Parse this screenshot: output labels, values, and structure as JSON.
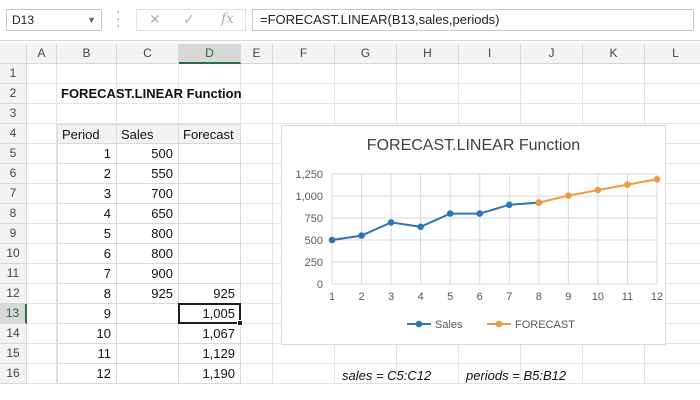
{
  "formula_bar": {
    "name_box": "D13",
    "formula": "=FORECAST.LINEAR(B13,sales,periods)",
    "cancel_icon": "x-icon",
    "enter_icon": "check-icon",
    "fx_icon": "fx-icon"
  },
  "columns": [
    "A",
    "B",
    "C",
    "D",
    "E",
    "F",
    "G",
    "H",
    "I",
    "J",
    "K",
    "L"
  ],
  "rows": [
    "1",
    "2",
    "3",
    "4",
    "5",
    "6",
    "7",
    "8",
    "9",
    "10",
    "11",
    "12",
    "13",
    "14",
    "15",
    "16"
  ],
  "sheet": {
    "title": "FORECAST.LINEAR Function",
    "table_headers": [
      "Period",
      "Sales",
      "Forecast"
    ],
    "periods": [
      "1",
      "2",
      "3",
      "4",
      "5",
      "6",
      "7",
      "8",
      "9",
      "10",
      "11",
      "12"
    ],
    "sales": [
      "500",
      "550",
      "700",
      "650",
      "800",
      "800",
      "900",
      "925",
      "",
      "",
      "",
      ""
    ],
    "forecast": [
      "",
      "",
      "",
      "",
      "",
      "",
      "",
      "925",
      "1,005",
      "1,067",
      "1,129",
      "1,190"
    ],
    "note_sales": "sales = C5:C12",
    "note_periods": "periods = B5:B12"
  },
  "active_cell": "D13",
  "chart_data": {
    "type": "line",
    "title": "FORECAST.LINEAR Function",
    "categories": [
      "1",
      "2",
      "3",
      "4",
      "5",
      "6",
      "7",
      "8",
      "9",
      "10",
      "11",
      "12"
    ],
    "y_ticks": [
      "0",
      "250",
      "500",
      "750",
      "1,000",
      "1,250"
    ],
    "ylim": [
      0,
      1250
    ],
    "grid": true,
    "legend": "bottom",
    "series": [
      {
        "name": "Sales",
        "color": "#2e75b6",
        "values": [
          500,
          550,
          700,
          650,
          800,
          800,
          900,
          925,
          null,
          null,
          null,
          null
        ]
      },
      {
        "name": "FORECAST",
        "color": "#ed9b40",
        "values": [
          null,
          null,
          null,
          null,
          null,
          null,
          null,
          925,
          1005,
          1067,
          1129,
          1190
        ]
      }
    ]
  }
}
